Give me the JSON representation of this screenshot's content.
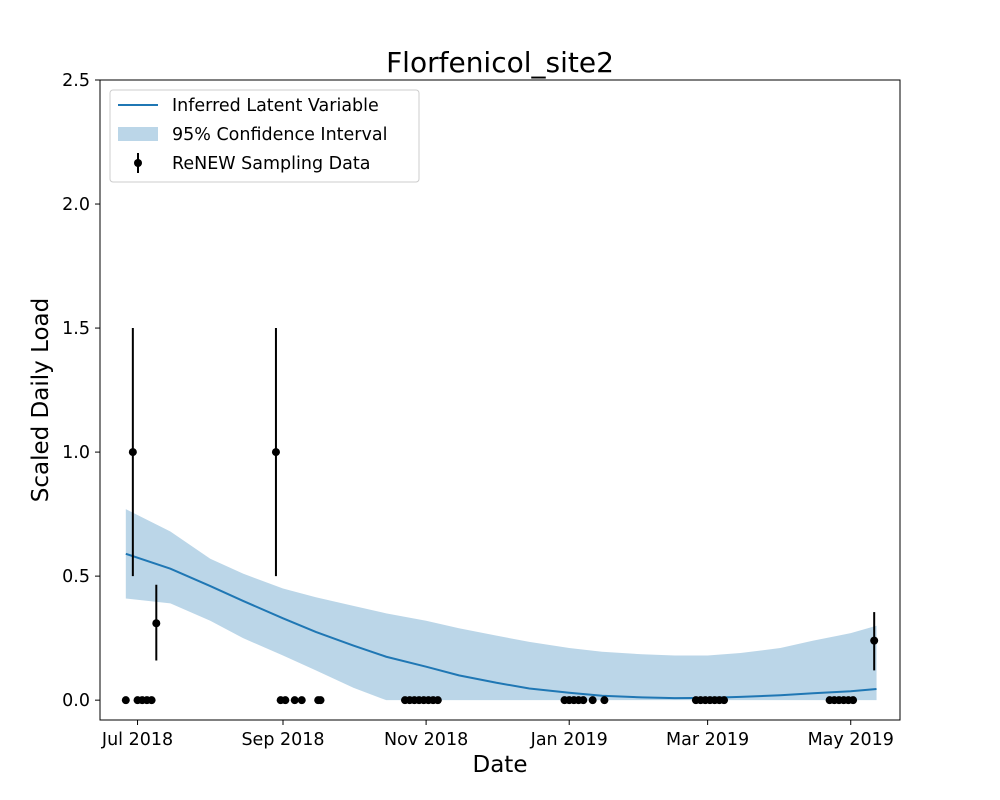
{
  "chart_data": {
    "type": "line",
    "title": "Florfenicol_site2",
    "xlabel": "Date",
    "ylabel": "Scaled Daily Load",
    "ylim": [
      -0.08,
      2.5
    ],
    "xlim": [
      "2018-06-15",
      "2019-05-22"
    ],
    "x_ticks": [
      {
        "date": "2018-07-01",
        "label": "Jul 2018"
      },
      {
        "date": "2018-09-01",
        "label": "Sep 2018"
      },
      {
        "date": "2018-11-01",
        "label": "Nov 2018"
      },
      {
        "date": "2019-01-01",
        "label": "Jan 2019"
      },
      {
        "date": "2019-03-01",
        "label": "Mar 2019"
      },
      {
        "date": "2019-05-01",
        "label": "May 2019"
      }
    ],
    "y_ticks": [
      {
        "value": 0.0,
        "label": "0.0"
      },
      {
        "value": 0.5,
        "label": "0.5"
      },
      {
        "value": 1.0,
        "label": "1.0"
      },
      {
        "value": 1.5,
        "label": "1.5"
      },
      {
        "value": 2.0,
        "label": "2.0"
      },
      {
        "value": 2.5,
        "label": "2.5"
      }
    ],
    "grid": false,
    "legend_position": "top-left",
    "legend": {
      "line": "Inferred Latent Variable",
      "band": "95% Confidence Interval",
      "points": "ReNEW Sampling Data"
    },
    "colors": {
      "line": "#1f77b4",
      "band": "#1f77b4",
      "points": "#000000"
    },
    "latent_variable": [
      {
        "x": "2018-06-26",
        "y": 0.59
      },
      {
        "x": "2018-07-15",
        "y": 0.53
      },
      {
        "x": "2018-08-01",
        "y": 0.46
      },
      {
        "x": "2018-08-15",
        "y": 0.4
      },
      {
        "x": "2018-09-01",
        "y": 0.33
      },
      {
        "x": "2018-09-15",
        "y": 0.275
      },
      {
        "x": "2018-10-01",
        "y": 0.22
      },
      {
        "x": "2018-10-15",
        "y": 0.175
      },
      {
        "x": "2018-11-01",
        "y": 0.135
      },
      {
        "x": "2018-11-15",
        "y": 0.1
      },
      {
        "x": "2018-12-01",
        "y": 0.07
      },
      {
        "x": "2018-12-15",
        "y": 0.047
      },
      {
        "x": "2019-01-01",
        "y": 0.03
      },
      {
        "x": "2019-01-15",
        "y": 0.018
      },
      {
        "x": "2019-02-01",
        "y": 0.011
      },
      {
        "x": "2019-02-15",
        "y": 0.008
      },
      {
        "x": "2019-03-01",
        "y": 0.009
      },
      {
        "x": "2019-03-15",
        "y": 0.013
      },
      {
        "x": "2019-04-01",
        "y": 0.02
      },
      {
        "x": "2019-04-15",
        "y": 0.028
      },
      {
        "x": "2019-05-01",
        "y": 0.036
      },
      {
        "x": "2019-05-12",
        "y": 0.045
      }
    ],
    "confidence_band": [
      {
        "x": "2018-06-26",
        "lower": 0.41,
        "upper": 0.77
      },
      {
        "x": "2018-07-15",
        "lower": 0.39,
        "upper": 0.68
      },
      {
        "x": "2018-08-01",
        "lower": 0.32,
        "upper": 0.57
      },
      {
        "x": "2018-08-15",
        "lower": 0.25,
        "upper": 0.51
      },
      {
        "x": "2018-09-01",
        "lower": 0.18,
        "upper": 0.45
      },
      {
        "x": "2018-09-15",
        "lower": 0.12,
        "upper": 0.415
      },
      {
        "x": "2018-10-01",
        "lower": 0.05,
        "upper": 0.38
      },
      {
        "x": "2018-10-15",
        "lower": 0.0,
        "upper": 0.35
      },
      {
        "x": "2018-11-01",
        "lower": 0.0,
        "upper": 0.32
      },
      {
        "x": "2018-11-15",
        "lower": 0.0,
        "upper": 0.29
      },
      {
        "x": "2018-12-01",
        "lower": 0.0,
        "upper": 0.26
      },
      {
        "x": "2018-12-15",
        "lower": 0.0,
        "upper": 0.235
      },
      {
        "x": "2019-01-01",
        "lower": 0.0,
        "upper": 0.21
      },
      {
        "x": "2019-01-15",
        "lower": 0.0,
        "upper": 0.195
      },
      {
        "x": "2019-02-01",
        "lower": 0.0,
        "upper": 0.185
      },
      {
        "x": "2019-02-15",
        "lower": 0.0,
        "upper": 0.18
      },
      {
        "x": "2019-03-01",
        "lower": 0.0,
        "upper": 0.18
      },
      {
        "x": "2019-03-15",
        "lower": 0.0,
        "upper": 0.19
      },
      {
        "x": "2019-04-01",
        "lower": 0.0,
        "upper": 0.21
      },
      {
        "x": "2019-04-15",
        "lower": 0.0,
        "upper": 0.24
      },
      {
        "x": "2019-05-01",
        "lower": 0.0,
        "upper": 0.27
      },
      {
        "x": "2019-05-12",
        "lower": 0.0,
        "upper": 0.3
      }
    ],
    "sampling_data": [
      {
        "x": "2018-06-26",
        "y": 0.0
      },
      {
        "x": "2018-06-29",
        "y": 1.0,
        "err_low": 0.5,
        "err_high": 1.5
      },
      {
        "x": "2018-07-01",
        "y": 0.0
      },
      {
        "x": "2018-07-03",
        "y": 0.0
      },
      {
        "x": "2018-07-05",
        "y": 0.0
      },
      {
        "x": "2018-07-07",
        "y": 0.0
      },
      {
        "x": "2018-07-09",
        "y": 0.31,
        "err_low": 0.16,
        "err_high": 0.465
      },
      {
        "x": "2018-08-29",
        "y": 1.0,
        "err_low": 0.5,
        "err_high": 1.5
      },
      {
        "x": "2018-08-31",
        "y": 0.0
      },
      {
        "x": "2018-09-02",
        "y": 0.0
      },
      {
        "x": "2018-09-06",
        "y": 0.0
      },
      {
        "x": "2018-09-09",
        "y": 0.0
      },
      {
        "x": "2018-09-16",
        "y": 0.0
      },
      {
        "x": "2018-09-17",
        "y": 0.0
      },
      {
        "x": "2018-10-23",
        "y": 0.0
      },
      {
        "x": "2018-10-25",
        "y": 0.0
      },
      {
        "x": "2018-10-27",
        "y": 0.0
      },
      {
        "x": "2018-10-29",
        "y": 0.0
      },
      {
        "x": "2018-10-31",
        "y": 0.0
      },
      {
        "x": "2018-11-02",
        "y": 0.0
      },
      {
        "x": "2018-11-04",
        "y": 0.0
      },
      {
        "x": "2018-11-06",
        "y": 0.0
      },
      {
        "x": "2018-12-30",
        "y": 0.0
      },
      {
        "x": "2019-01-01",
        "y": 0.0
      },
      {
        "x": "2019-01-03",
        "y": 0.0
      },
      {
        "x": "2019-01-05",
        "y": 0.0
      },
      {
        "x": "2019-01-07",
        "y": 0.0
      },
      {
        "x": "2019-01-11",
        "y": 0.0
      },
      {
        "x": "2019-01-16",
        "y": 0.0
      },
      {
        "x": "2019-02-24",
        "y": 0.0
      },
      {
        "x": "2019-02-26",
        "y": 0.0
      },
      {
        "x": "2019-02-28",
        "y": 0.0
      },
      {
        "x": "2019-03-02",
        "y": 0.0
      },
      {
        "x": "2019-03-04",
        "y": 0.0
      },
      {
        "x": "2019-03-06",
        "y": 0.0
      },
      {
        "x": "2019-03-08",
        "y": 0.0
      },
      {
        "x": "2019-04-22",
        "y": 0.0
      },
      {
        "x": "2019-04-24",
        "y": 0.0
      },
      {
        "x": "2019-04-26",
        "y": 0.0
      },
      {
        "x": "2019-04-28",
        "y": 0.0
      },
      {
        "x": "2019-04-30",
        "y": 0.0
      },
      {
        "x": "2019-05-02",
        "y": 0.0
      },
      {
        "x": "2019-05-11",
        "y": 0.24,
        "err_low": 0.12,
        "err_high": 0.355
      }
    ]
  }
}
